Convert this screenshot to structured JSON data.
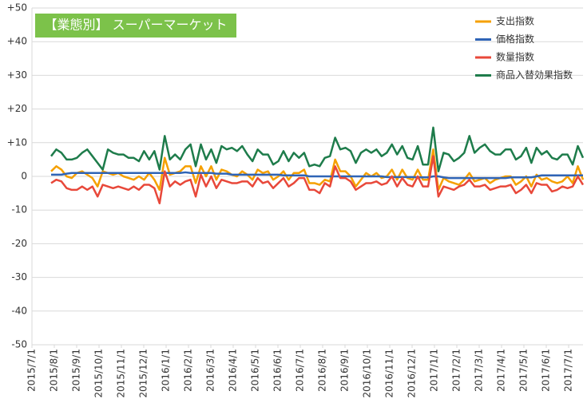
{
  "chart_data": {
    "type": "line",
    "title": "【業態別】 スーパーマーケット",
    "title_color": "#7cc24a",
    "x_tick_labels": [
      "2015/7/1",
      "2015/8/1",
      "2015/9/1",
      "2015/10/1",
      "2015/11/1",
      "2015/12/1",
      "2016/1/1",
      "2016/2/1",
      "2016/3/1",
      "2016/4/1",
      "2016/5/1",
      "2016/6/1",
      "2016/7/1",
      "2016/8/1",
      "2016/9/1",
      "2016/10/1",
      "2016/11/1",
      "2016/12/1",
      "2017/1/1",
      "2017/2/1",
      "2017/3/1",
      "2017/4/1",
      "2017/5/1",
      "2017/6/1",
      "2017/7/1"
    ],
    "ylim": [
      -50,
      50
    ],
    "yticks": [
      {
        "value": 50,
        "label": "+50"
      },
      {
        "value": 40,
        "label": "+40"
      },
      {
        "value": 30,
        "label": "+30"
      },
      {
        "value": 20,
        "label": "+20"
      },
      {
        "value": 10,
        "label": "+10"
      },
      0,
      -10,
      -20,
      -30,
      -40,
      -50
    ],
    "grid": true,
    "legend": "top-right",
    "series": [
      {
        "name": "支出指数",
        "color": "#f5a000",
        "values": [
          1.5,
          3,
          2,
          0,
          -0.5,
          1,
          1.5,
          0.5,
          -0.5,
          -3,
          1.5,
          1,
          0.5,
          1,
          0,
          -0.5,
          -1,
          0,
          -1,
          1,
          -1,
          -4,
          5.5,
          0.5,
          1,
          1.5,
          3,
          3,
          -2,
          3,
          0,
          3,
          -1,
          2,
          1.5,
          0.5,
          0,
          1.5,
          0.5,
          -1,
          2,
          1,
          1.5,
          -1,
          0,
          1.5,
          -1,
          1,
          1,
          2,
          -2,
          -2,
          -2.5,
          -1,
          -1.5,
          5,
          1.5,
          1.5,
          0,
          -3,
          -1,
          1,
          0,
          1,
          -0.5,
          0,
          2,
          -1,
          2,
          -0.5,
          -1,
          2,
          -1,
          -1,
          8,
          -4,
          -0.5,
          -1.5,
          -2,
          -2.5,
          -1,
          1,
          -1.5,
          -1,
          -0.5,
          -2,
          -1,
          -0.5,
          0,
          0,
          -2.5,
          -1.5,
          0,
          -3,
          0.5,
          -1,
          -0.5,
          -1.5,
          -2,
          -1.5,
          0,
          -2,
          3,
          -1
        ]
      },
      {
        "name": "価格指数",
        "color": "#2f64b6",
        "values": [
          0.5,
          0.5,
          0.5,
          0.8,
          1,
          1,
          1,
          1,
          1,
          1,
          1,
          1,
          1,
          1,
          1,
          1,
          1,
          1,
          1,
          1,
          1,
          1,
          1,
          1,
          1,
          1,
          1.2,
          1,
          1,
          1,
          1,
          1,
          0.8,
          0.8,
          0.8,
          0.5,
          0.5,
          0.5,
          0.5,
          0.5,
          0.5,
          0.5,
          0.5,
          0.5,
          0.5,
          0.3,
          0.3,
          0.3,
          0.3,
          0.3,
          0,
          0,
          0,
          0,
          0,
          0,
          0,
          0,
          0,
          0,
          0,
          0,
          0,
          0,
          0,
          -0.2,
          -0.2,
          -0.2,
          -0.2,
          -0.2,
          -0.2,
          -0.3,
          -0.3,
          -0.3,
          0,
          0,
          -0.3,
          -0.5,
          -0.5,
          -0.5,
          -0.5,
          -0.5,
          -0.5,
          -0.5,
          -0.5,
          -0.5,
          -0.5,
          -0.5,
          -0.5,
          -0.3,
          -0.3,
          -0.3,
          -0.3,
          -0.3,
          0,
          0.3,
          0.3,
          0.3,
          0.3,
          0.3,
          0.3,
          0.3,
          0.3,
          0.3
        ]
      },
      {
        "name": "数量指数",
        "color": "#e8483a",
        "values": [
          -2,
          -1,
          -1.5,
          -3.5,
          -4,
          -4,
          -3,
          -4,
          -3,
          -6,
          -2.5,
          -3,
          -3.5,
          -3,
          -3.5,
          -4,
          -3,
          -4,
          -2.5,
          -2.5,
          -3.5,
          -8,
          1.5,
          -3,
          -1.5,
          -2.5,
          -1.5,
          -1,
          -6,
          0.5,
          -3,
          0,
          -3.5,
          -1,
          -1.5,
          -2,
          -2,
          -1.5,
          -1.5,
          -3,
          -0.5,
          -2,
          -1.5,
          -3.5,
          -2,
          -0.5,
          -3,
          -2,
          -0.5,
          -0.5,
          -4,
          -4,
          -5,
          -2,
          -3,
          3,
          -0.5,
          -0.5,
          -1.5,
          -4,
          -3,
          -2,
          -2,
          -1.5,
          -2.5,
          -2,
          0,
          -3,
          -0.5,
          -2.5,
          -3,
          0,
          -3,
          -3,
          6,
          -6,
          -3,
          -3.5,
          -4,
          -3,
          -2.5,
          -1,
          -3,
          -3,
          -2.5,
          -4,
          -3.5,
          -3,
          -3,
          -2.5,
          -5,
          -4,
          -2.5,
          -5,
          -2,
          -2.5,
          -2.5,
          -4.5,
          -4,
          -3,
          -3.5,
          -3,
          0,
          -2.5
        ]
      },
      {
        "name": "商品入替効果指数",
        "color": "#1e7c4b",
        "values": [
          6,
          8,
          7,
          5,
          5,
          5.5,
          7,
          8,
          6,
          4,
          2,
          8,
          7,
          6.5,
          6.5,
          5.5,
          5.5,
          4.5,
          7.5,
          5,
          7.5,
          2,
          12,
          5,
          6.5,
          5,
          8,
          9.5,
          3,
          9.5,
          5,
          8,
          4,
          9,
          8,
          8.5,
          7.5,
          9,
          6.5,
          4.5,
          8,
          6.5,
          6.5,
          3.5,
          4.5,
          7.5,
          4.5,
          7,
          5.5,
          7,
          3,
          3.5,
          3,
          5.5,
          6,
          11.5,
          8,
          8.5,
          7.5,
          4,
          7,
          8,
          7,
          8,
          6,
          7,
          9.5,
          6.5,
          9,
          5.5,
          5,
          9,
          3.5,
          3.5,
          14.5,
          1.5,
          7,
          6.5,
          4.5,
          5.5,
          7,
          12,
          7,
          8.5,
          9.5,
          7.5,
          6.5,
          6.5,
          8,
          8,
          5,
          6,
          8.5,
          4,
          8.5,
          6.5,
          7.5,
          5.5,
          5,
          6.5,
          6.5,
          3.5,
          9,
          5.5
        ]
      }
    ]
  }
}
